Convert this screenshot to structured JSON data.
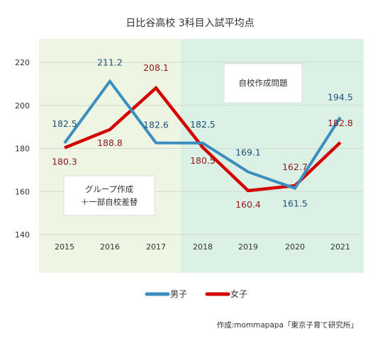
{
  "chart_data": {
    "type": "line",
    "title": "日比谷高校 3科目入試平均点",
    "categories": [
      "2015",
      "2016",
      "2017",
      "2018",
      "2019",
      "2020",
      "2021"
    ],
    "series": [
      {
        "name": "男子",
        "color": "#3a8fbf",
        "label_color": "#1f4e79",
        "values": [
          182.5,
          211.2,
          182.6,
          182.5,
          169.1,
          161.5,
          194.5
        ],
        "labels": [
          "182.5",
          "211.2",
          "182.6",
          "182.5",
          "169.1",
          "161.5",
          "194.5"
        ]
      },
      {
        "name": "女子",
        "color": "#d40000",
        "label_color": "#8b1a1a",
        "values": [
          180.3,
          188.8,
          208.1,
          180.5,
          160.4,
          162.7,
          182.8
        ],
        "labels": [
          "180.3",
          "188.8",
          "208.1",
          "180.5",
          "160.4",
          "162.7",
          "182.8"
        ]
      }
    ],
    "ylim": [
      130,
      230
    ],
    "yticks": [
      "140",
      "160",
      "180",
      "200",
      "220"
    ],
    "grid": true,
    "legend": "bottom",
    "region_left_color": "#eef5e2",
    "region_right_color": "#dcf1e6",
    "annotations": [
      {
        "text": [
          "自校作成問題"
        ]
      },
      {
        "text": [
          "グループ作成",
          "＋一部自校差替"
        ]
      }
    ],
    "source": "作成:mommapapa「東京子育て研究所」"
  }
}
